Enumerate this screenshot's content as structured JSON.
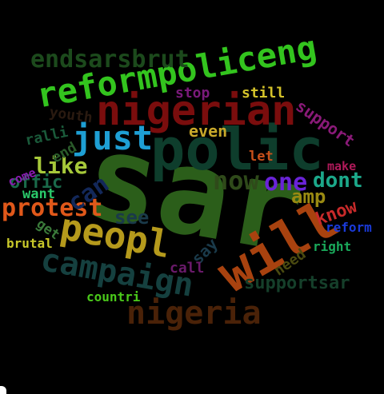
{
  "words": [
    {
      "text": "sar",
      "color": "#2b5e1a"
    },
    {
      "text": "polic",
      "color": "#0e3d2c"
    },
    {
      "text": "will",
      "color": "#a8420f"
    },
    {
      "text": "nigerian",
      "color": "#7a0d0d"
    },
    {
      "text": "reformpoliceng",
      "color": "#33c41e"
    },
    {
      "text": "peopl",
      "color": "#b59a1c"
    },
    {
      "text": "campaign",
      "color": "#15403f"
    },
    {
      "text": "nigeria",
      "color": "#4a2208"
    },
    {
      "text": "just",
      "color": "#1e9fd4"
    },
    {
      "text": "endsarsbrut",
      "color": "#1c4a1c"
    },
    {
      "text": "protest",
      "color": "#e0581a"
    },
    {
      "text": "now",
      "color": "#2f4a1a"
    },
    {
      "text": "one",
      "color": "#6a23d8"
    },
    {
      "text": "can",
      "color": "#13285a"
    },
    {
      "text": "like",
      "color": "#a6c83a"
    },
    {
      "text": "dont",
      "color": "#1ca88a"
    },
    {
      "text": "support",
      "color": "#8a1a78"
    },
    {
      "text": "know",
      "color": "#c82a2a"
    },
    {
      "text": "amp",
      "color": "#9a8a12"
    },
    {
      "text": "see",
      "color": "#1a3a4a"
    },
    {
      "text": "supportsar",
      "color": "#153f2a"
    },
    {
      "text": "say",
      "color": "#1a3a4a"
    },
    {
      "text": "even",
      "color": "#c8a82a"
    },
    {
      "text": "stop",
      "color": "#7a1a7a"
    },
    {
      "text": "still",
      "color": "#d4c22a"
    },
    {
      "text": "offic",
      "color": "#1a6a4a"
    },
    {
      "text": "youth",
      "color": "#2a1a10"
    },
    {
      "text": "ralli",
      "color": "#1a5a3a"
    },
    {
      "text": "end",
      "color": "#2a5a2a"
    },
    {
      "text": "come",
      "color": "#8a1ab0"
    },
    {
      "text": "want",
      "color": "#2ac86a"
    },
    {
      "text": "get",
      "color": "#3a7a3a"
    },
    {
      "text": "brutal",
      "color": "#c8c82a"
    },
    {
      "text": "let",
      "color": "#c8501a"
    },
    {
      "text": "make",
      "color": "#b01a5a"
    },
    {
      "text": "reform",
      "color": "#1a3ad8"
    },
    {
      "text": "right",
      "color": "#1aa85a"
    },
    {
      "text": "need",
      "color": "#4a4a10"
    },
    {
      "text": "call",
      "color": "#6a1a6a"
    },
    {
      "text": "countri",
      "color": "#4ac81a"
    }
  ]
}
